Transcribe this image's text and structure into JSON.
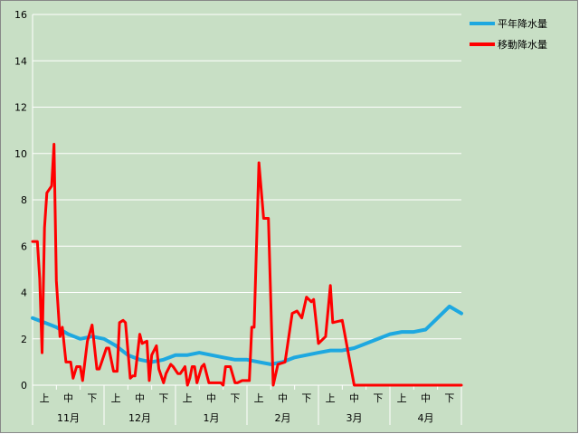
{
  "chart_data": {
    "type": "line",
    "ylim": [
      0,
      16
    ],
    "yticks": [
      0,
      2,
      4,
      6,
      8,
      10,
      12,
      14,
      16
    ],
    "months": [
      "11月",
      "12月",
      "1月",
      "2月",
      "3月",
      "4月"
    ],
    "periods": [
      "上",
      "中",
      "下"
    ],
    "grid": true,
    "legend_position": "top-right",
    "colors": {
      "plot_bg": "#c8dfc5",
      "frame_bg": "#c8dfc5",
      "normal": "#1ea8e0",
      "moving": "#ff0000"
    },
    "series": [
      {
        "name": "平年降水量",
        "x": [
          0,
          0.5,
          1.0,
          1.5,
          2.0,
          2.5,
          3.0,
          3.5,
          4.0,
          4.5,
          5.0,
          5.5,
          6.0,
          6.5,
          7.0,
          7.5,
          8.0,
          8.5,
          9.0,
          9.5,
          10.0,
          10.5,
          11.0,
          11.5,
          12.0,
          12.5,
          13.0,
          13.5,
          14.0,
          14.5,
          15.0,
          15.5,
          16.0,
          16.5,
          17.0,
          17.5,
          18.0
        ],
        "values": [
          2.9,
          2.7,
          2.5,
          2.2,
          2.0,
          2.1,
          2.0,
          1.7,
          1.3,
          1.1,
          1.0,
          1.1,
          1.3,
          1.3,
          1.4,
          1.3,
          1.2,
          1.1,
          1.1,
          1.0,
          0.9,
          1.0,
          1.2,
          1.3,
          1.4,
          1.5,
          1.5,
          1.6,
          1.8,
          2.0,
          2.2,
          2.3,
          2.3,
          2.4,
          2.9,
          3.4,
          3.1
        ]
      },
      {
        "name": "移動降水量",
        "x": [
          0,
          0.2,
          0.3,
          0.4,
          0.5,
          0.6,
          0.8,
          0.9,
          1.0,
          1.15,
          1.25,
          1.4,
          1.6,
          1.7,
          1.85,
          2.0,
          2.1,
          2.3,
          2.5,
          2.7,
          2.8,
          2.9,
          3.1,
          3.2,
          3.4,
          3.55,
          3.65,
          3.8,
          3.9,
          4.1,
          4.2,
          4.3,
          4.5,
          4.6,
          4.8,
          4.9,
          5.0,
          5.2,
          5.3,
          5.5,
          5.6,
          5.8,
          5.9,
          6.1,
          6.2,
          6.4,
          6.5,
          6.6,
          6.7,
          6.8,
          6.9,
          7.1,
          7.2,
          7.4,
          7.6,
          7.7,
          7.9,
          8.0,
          8.1,
          8.3,
          8.5,
          8.6,
          8.8,
          9.1,
          9.2,
          9.3,
          9.5,
          9.7,
          9.9,
          10.1,
          10.3,
          10.6,
          10.9,
          11.1,
          11.3,
          11.5,
          11.7,
          11.8,
          12.0,
          12.3,
          12.5,
          12.6,
          13.0,
          13.5,
          13.8,
          14.0,
          14.2,
          14.4,
          14.6,
          14.8,
          15.0,
          15.3,
          15.5,
          15.6,
          15.8,
          16.0,
          16.1,
          16.2,
          16.4,
          16.5,
          16.6,
          16.8,
          17.0,
          17.1,
          17.2,
          17.4,
          17.5,
          17.6,
          17.8,
          17.9,
          18.0
        ],
        "values": [
          6.2,
          6.2,
          4.6,
          1.4,
          6.8,
          8.3,
          8.6,
          10.4,
          4.5,
          2.1,
          2.5,
          1.0,
          1.0,
          0.3,
          0.8,
          0.8,
          0.2,
          1.9,
          2.6,
          0.7,
          0.7,
          1.0,
          1.6,
          1.6,
          0.6,
          0.6,
          2.7,
          2.8,
          2.7,
          0.3,
          0.4,
          0.4,
          2.2,
          1.8,
          1.9,
          0.2,
          1.3,
          1.7,
          0.7,
          0.1,
          0.5,
          0.9,
          0.8,
          0.5,
          0.5,
          0.8,
          0.0,
          0.3,
          0.8,
          0.8,
          0.1,
          0.8,
          0.9,
          0.1,
          0.1,
          0.1,
          0.1,
          0.0,
          0.8,
          0.8,
          0.1,
          0.1,
          0.2,
          0.2,
          2.5,
          2.5,
          9.6,
          7.2,
          7.2,
          0.0,
          0.9,
          1.0,
          3.1,
          3.2,
          2.9,
          3.8,
          3.6,
          3.7,
          1.8,
          2.1,
          4.3,
          2.7,
          2.8,
          0.0,
          0.0,
          0.0,
          0.0,
          0.0,
          0.0,
          0.0,
          0.0,
          0.0,
          0.0,
          0.0,
          0.0,
          0.0,
          0.0,
          0.0,
          0.0,
          0.0,
          0.0,
          0.0,
          0.0,
          0.0,
          0.0,
          0.0,
          0.0,
          0.0,
          0.0,
          0.0,
          0.0
        ]
      }
    ]
  }
}
